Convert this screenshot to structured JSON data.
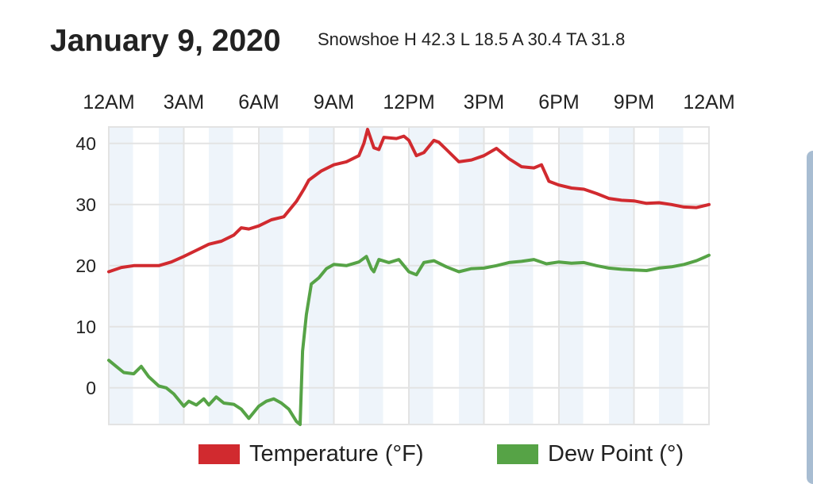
{
  "header": {
    "title": "January 9, 2020",
    "subtitle": "Snowshoe H 42.3 L 18.5 A 30.4 TA 31.8"
  },
  "chart_data": {
    "type": "line",
    "x_unit": "hours since midnight",
    "xlim": [
      0,
      24
    ],
    "ylim": [
      -6,
      42.7
    ],
    "x_ticks": [
      {
        "h": 0,
        "label": "12AM"
      },
      {
        "h": 3,
        "label": "3AM"
      },
      {
        "h": 6,
        "label": "6AM"
      },
      {
        "h": 9,
        "label": "9AM"
      },
      {
        "h": 12,
        "label": "12PM"
      },
      {
        "h": 15,
        "label": "3PM"
      },
      {
        "h": 18,
        "label": "6PM"
      },
      {
        "h": 21,
        "label": "9PM"
      },
      {
        "h": 24,
        "label": "12AM"
      }
    ],
    "y_ticks": [
      {
        "v": 40,
        "label": "40"
      },
      {
        "v": 30,
        "label": "30"
      },
      {
        "v": 20,
        "label": "20"
      },
      {
        "v": 10,
        "label": "10"
      },
      {
        "v": 0,
        "label": "0"
      }
    ],
    "shaded_hours": [
      0,
      2,
      4,
      6,
      8,
      10,
      12,
      14,
      16,
      18,
      20,
      22
    ],
    "series": [
      {
        "name": "Temperature (°F)",
        "color": "#d12a2f",
        "points": [
          [
            0,
            19
          ],
          [
            0.5,
            19.7
          ],
          [
            1,
            20
          ],
          [
            2,
            20
          ],
          [
            2.5,
            20.6
          ],
          [
            3,
            21.5
          ],
          [
            3.5,
            22.5
          ],
          [
            4,
            23.5
          ],
          [
            4.5,
            24
          ],
          [
            5,
            25
          ],
          [
            5.3,
            26.2
          ],
          [
            5.6,
            26
          ],
          [
            6,
            26.5
          ],
          [
            6.5,
            27.5
          ],
          [
            7,
            28
          ],
          [
            7.5,
            30.5
          ],
          [
            7.8,
            32.5
          ],
          [
            8,
            34
          ],
          [
            8.5,
            35.5
          ],
          [
            9,
            36.5
          ],
          [
            9.5,
            37
          ],
          [
            10,
            38
          ],
          [
            10.2,
            40
          ],
          [
            10.35,
            42.3
          ],
          [
            10.6,
            39.3
          ],
          [
            10.8,
            39
          ],
          [
            11,
            41
          ],
          [
            11.5,
            40.8
          ],
          [
            11.8,
            41.2
          ],
          [
            12,
            40.5
          ],
          [
            12.3,
            38
          ],
          [
            12.6,
            38.5
          ],
          [
            13,
            40.5
          ],
          [
            13.2,
            40.2
          ],
          [
            13.5,
            39
          ],
          [
            14,
            37
          ],
          [
            14.5,
            37.3
          ],
          [
            15,
            38
          ],
          [
            15.5,
            39.2
          ],
          [
            16,
            37.5
          ],
          [
            16.5,
            36.2
          ],
          [
            17,
            36
          ],
          [
            17.3,
            36.5
          ],
          [
            17.6,
            33.8
          ],
          [
            18,
            33.2
          ],
          [
            18.5,
            32.7
          ],
          [
            19,
            32.5
          ],
          [
            19.5,
            31.8
          ],
          [
            20,
            31
          ],
          [
            20.5,
            30.7
          ],
          [
            21,
            30.6
          ],
          [
            21.5,
            30.2
          ],
          [
            22,
            30.3
          ],
          [
            22.5,
            30
          ],
          [
            23,
            29.6
          ],
          [
            23.5,
            29.5
          ],
          [
            24,
            30
          ]
        ]
      },
      {
        "name": "Dew Point (°)",
        "color": "#56a346",
        "points": [
          [
            0,
            4.5
          ],
          [
            0.3,
            3.5
          ],
          [
            0.6,
            2.5
          ],
          [
            1,
            2.3
          ],
          [
            1.3,
            3.5
          ],
          [
            1.6,
            1.8
          ],
          [
            2,
            0.3
          ],
          [
            2.3,
            0
          ],
          [
            2.6,
            -1
          ],
          [
            3,
            -3
          ],
          [
            3.2,
            -2.2
          ],
          [
            3.5,
            -2.8
          ],
          [
            3.8,
            -1.8
          ],
          [
            4,
            -2.8
          ],
          [
            4.3,
            -1.5
          ],
          [
            4.6,
            -2.5
          ],
          [
            5,
            -2.7
          ],
          [
            5.3,
            -3.5
          ],
          [
            5.6,
            -5
          ],
          [
            5.8,
            -4
          ],
          [
            6,
            -3
          ],
          [
            6.3,
            -2.2
          ],
          [
            6.6,
            -1.8
          ],
          [
            6.9,
            -2.5
          ],
          [
            7.2,
            -3.5
          ],
          [
            7.5,
            -5.5
          ],
          [
            7.65,
            -6
          ],
          [
            7.75,
            6
          ],
          [
            7.9,
            12
          ],
          [
            8.1,
            17
          ],
          [
            8.4,
            18
          ],
          [
            8.7,
            19.5
          ],
          [
            9,
            20.2
          ],
          [
            9.5,
            20
          ],
          [
            10,
            20.6
          ],
          [
            10.3,
            21.5
          ],
          [
            10.5,
            19.5
          ],
          [
            10.6,
            19
          ],
          [
            10.8,
            21
          ],
          [
            11.2,
            20.5
          ],
          [
            11.6,
            21
          ],
          [
            12,
            19
          ],
          [
            12.3,
            18.5
          ],
          [
            12.6,
            20.5
          ],
          [
            13,
            20.8
          ],
          [
            13.5,
            19.8
          ],
          [
            14,
            19
          ],
          [
            14.5,
            19.5
          ],
          [
            15,
            19.6
          ],
          [
            15.5,
            20
          ],
          [
            16,
            20.5
          ],
          [
            16.5,
            20.7
          ],
          [
            17,
            21
          ],
          [
            17.5,
            20.3
          ],
          [
            18,
            20.6
          ],
          [
            18.5,
            20.4
          ],
          [
            19,
            20.5
          ],
          [
            19.5,
            20
          ],
          [
            20,
            19.6
          ],
          [
            20.5,
            19.4
          ],
          [
            21,
            19.3
          ],
          [
            21.5,
            19.2
          ],
          [
            22,
            19.6
          ],
          [
            22.5,
            19.8
          ],
          [
            23,
            20.2
          ],
          [
            23.5,
            20.8
          ],
          [
            24,
            21.7
          ]
        ]
      }
    ]
  }
}
